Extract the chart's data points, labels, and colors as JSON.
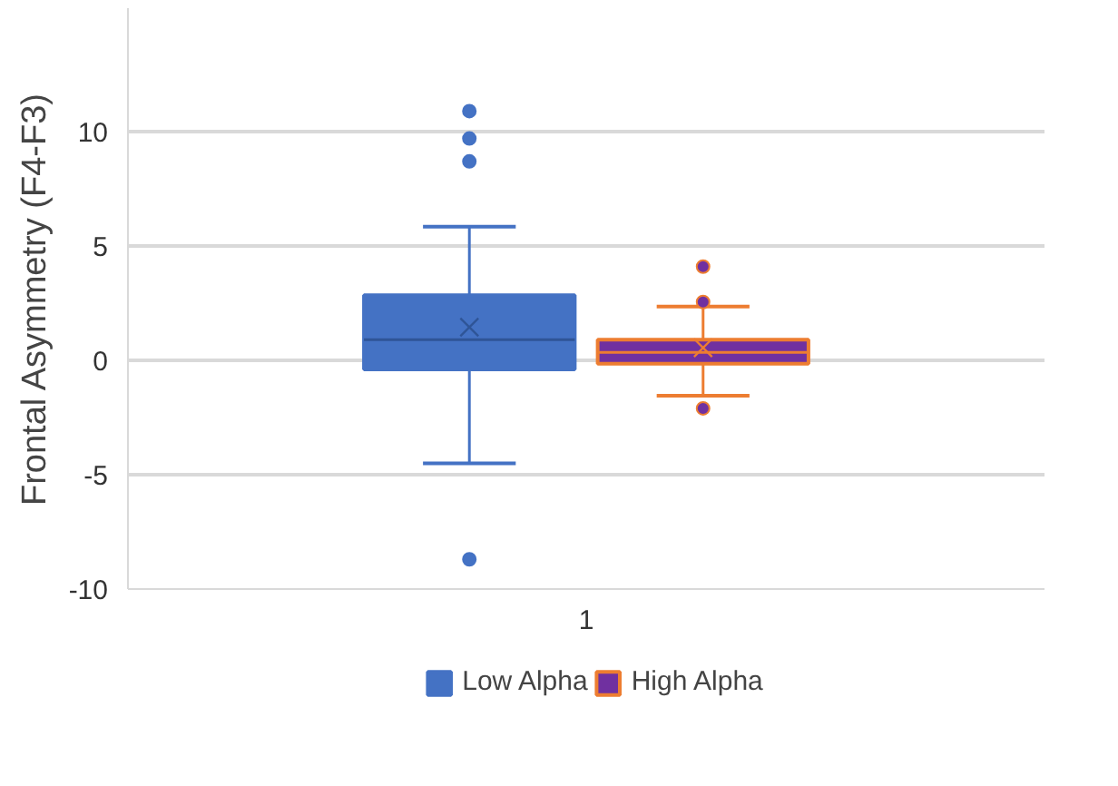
{
  "chart_data": {
    "type": "box",
    "ylabel": "Frontal Asymmetry (F4-F3)",
    "categories": [
      "1"
    ],
    "ylim": [
      -10,
      15.4
    ],
    "yticks": [
      -10,
      -5,
      0,
      5,
      10
    ],
    "grid": "y",
    "legend": "bottom",
    "series": [
      {
        "name": "Low Alpha",
        "color": "#4472c4",
        "boxes": [
          {
            "low": -4.5,
            "q1": -0.4,
            "median": 0.9,
            "q3": 2.85,
            "high": 5.85,
            "mean": 1.45,
            "outliers": [
              10.9,
              9.7,
              8.7,
              -8.7
            ]
          }
        ]
      },
      {
        "name": "High Alpha",
        "color": "#7030a0",
        "boxes": [
          {
            "low": -1.55,
            "q1": -0.15,
            "median": 0.35,
            "q3": 0.9,
            "high": 2.35,
            "mean": 0.55,
            "outliers": [
              4.1,
              2.55,
              -2.1
            ]
          }
        ]
      }
    ]
  }
}
